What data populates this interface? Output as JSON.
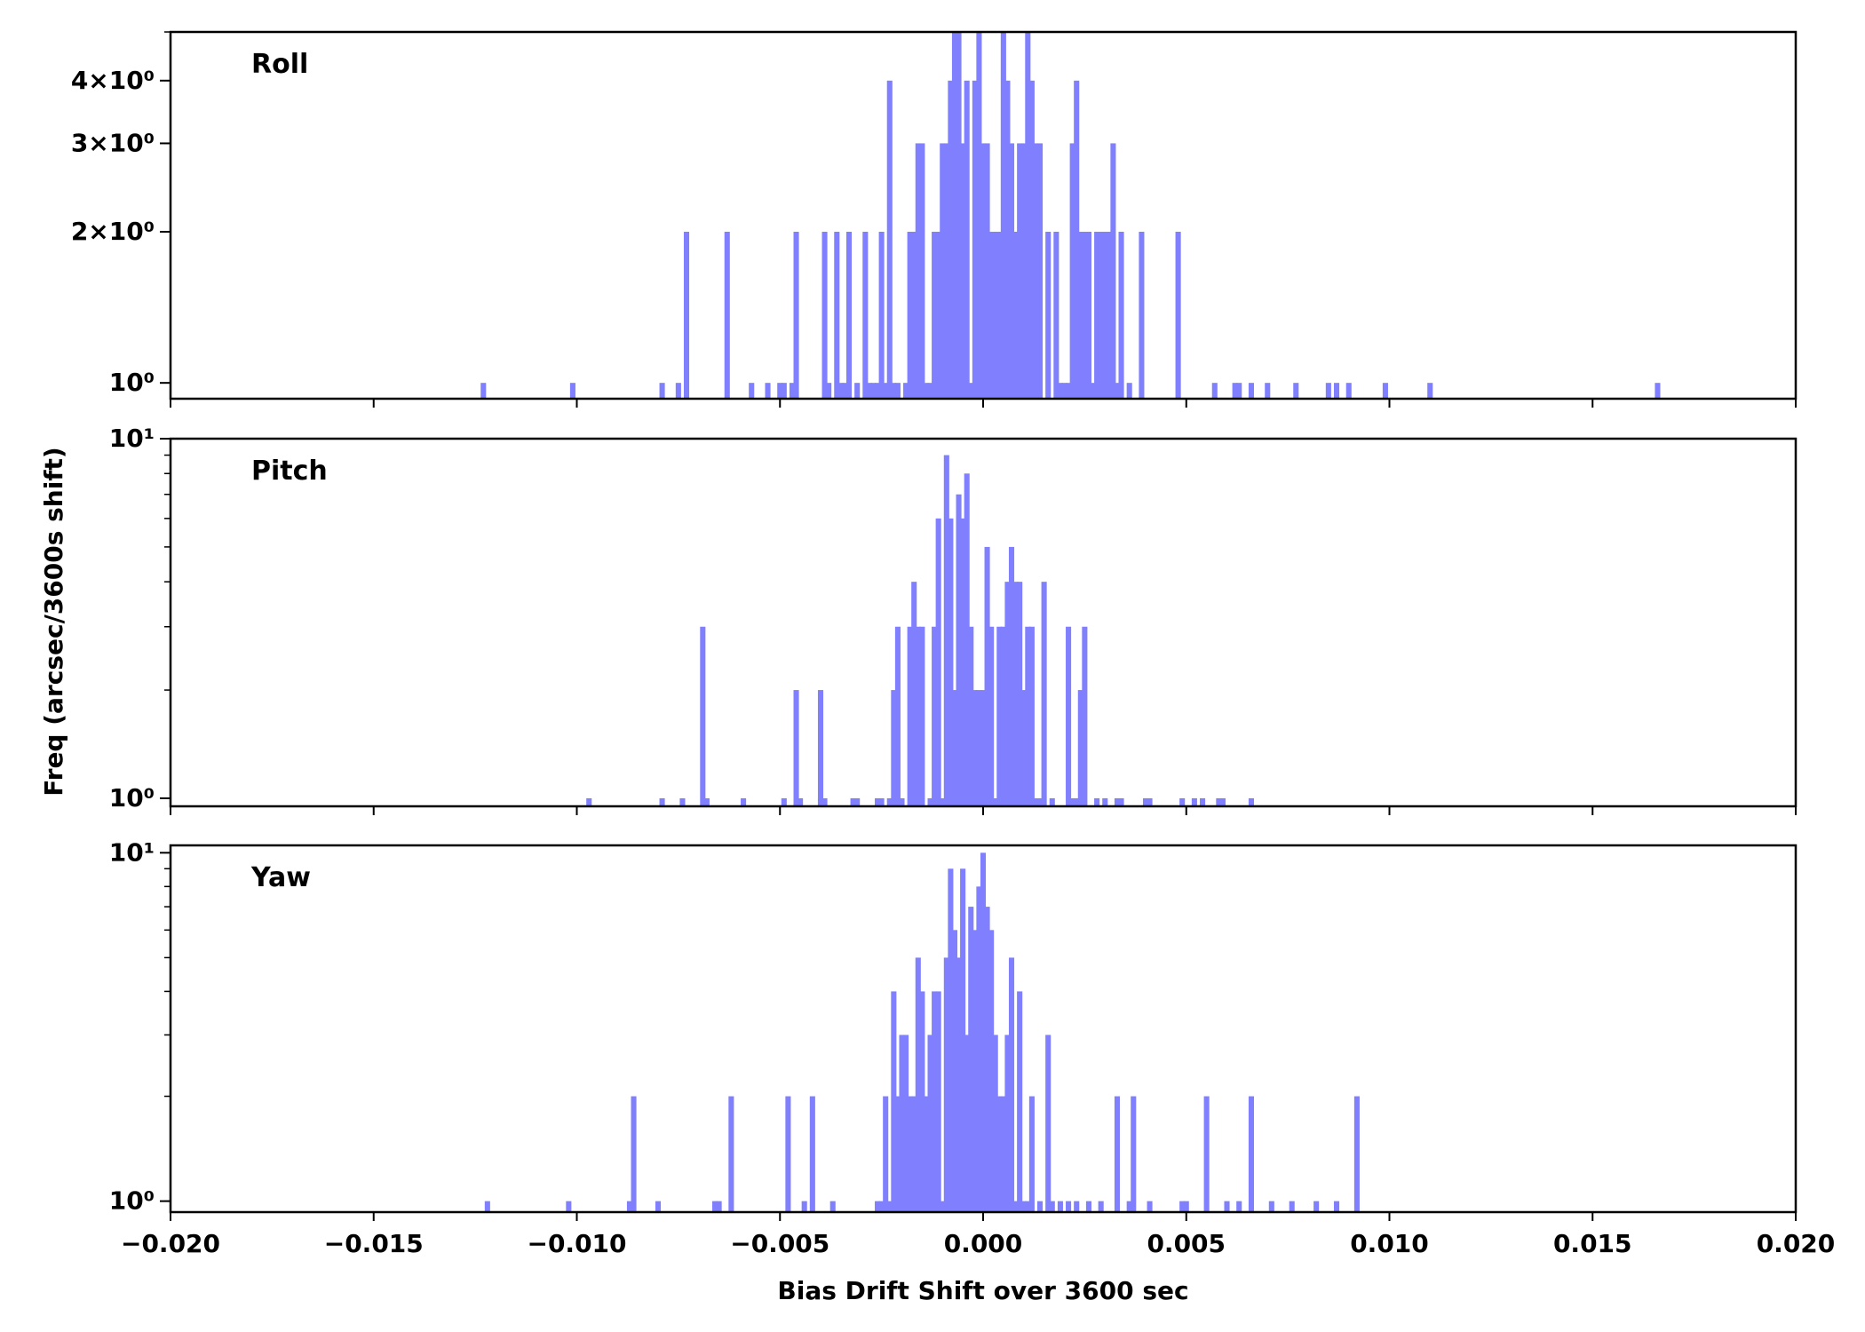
{
  "chart_data": {
    "type": "bar",
    "subtype": "histogram-stacked-panels",
    "xlabel": "Bias Drift Shift over 3600 sec",
    "ylabel": "Freq (arcsec/3600s shift)",
    "xlim": [
      -0.02,
      0.02
    ],
    "x_ticks": [
      -0.02,
      -0.015,
      -0.01,
      -0.005,
      0.0,
      0.005,
      0.01,
      0.015,
      0.02
    ],
    "x_tick_labels": [
      "−0.020",
      "−0.015",
      "−0.010",
      "−0.005",
      "0.000",
      "0.005",
      "0.010",
      "0.015",
      "0.020"
    ],
    "bar_color": "#8080ff",
    "bin_width": 0.000133,
    "yscale": "log",
    "grid": false,
    "panels": [
      {
        "name": "Roll",
        "ylim": [
          0.93,
          5.0
        ],
        "y_ticks": [
          1,
          2,
          3,
          4
        ],
        "y_tick_labels": [
          "10⁰",
          "2×10⁰",
          "3×10⁰",
          "4×10⁰"
        ],
        "bins": [
          [
            -0.0123,
            1
          ],
          [
            -0.0101,
            1
          ],
          [
            -0.0079,
            1
          ],
          [
            -0.0075,
            1
          ],
          [
            -0.0073,
            2
          ],
          [
            -0.0063,
            2
          ],
          [
            -0.0057,
            1
          ],
          [
            -0.0053,
            1
          ],
          [
            -0.005,
            1
          ],
          [
            -0.0049,
            1
          ],
          [
            -0.0047,
            1
          ],
          [
            -0.0046,
            2
          ],
          [
            -0.0039,
            2
          ],
          [
            -0.0038,
            1
          ],
          [
            -0.0036,
            2
          ],
          [
            -0.0035,
            1
          ],
          [
            -0.0034,
            1
          ],
          [
            -0.0033,
            2
          ],
          [
            -0.0031,
            1
          ],
          [
            -0.0029,
            2
          ],
          [
            -0.0028,
            1
          ],
          [
            -0.0027,
            1
          ],
          [
            -0.0026,
            1
          ],
          [
            -0.0025,
            2
          ],
          [
            -0.0024,
            1
          ],
          [
            -0.0023,
            4
          ],
          [
            -0.0022,
            1
          ],
          [
            -0.0021,
            1
          ],
          [
            -0.0019,
            1
          ],
          [
            -0.0018,
            2
          ],
          [
            -0.0017,
            2
          ],
          [
            -0.0016,
            3
          ],
          [
            -0.0015,
            3
          ],
          [
            -0.0014,
            1
          ],
          [
            -0.0013,
            1
          ],
          [
            -0.0012,
            2
          ],
          [
            -0.0011,
            2
          ],
          [
            -0.001,
            3
          ],
          [
            -0.0009,
            3
          ],
          [
            -0.0008,
            4
          ],
          [
            -0.0007,
            5
          ],
          [
            -0.0006,
            5
          ],
          [
            -0.0005,
            3
          ],
          [
            -0.0004,
            4
          ],
          [
            -0.0003,
            1
          ],
          [
            -0.0002,
            4
          ],
          [
            -0.0001,
            5
          ],
          [
            0.0,
            3
          ],
          [
            0.0001,
            3
          ],
          [
            0.0002,
            2
          ],
          [
            0.0003,
            2
          ],
          [
            0.0004,
            2
          ],
          [
            0.0005,
            5
          ],
          [
            0.0006,
            4
          ],
          [
            0.0007,
            3
          ],
          [
            0.0008,
            2
          ],
          [
            0.0009,
            3
          ],
          [
            0.001,
            3
          ],
          [
            0.0011,
            5
          ],
          [
            0.0012,
            4
          ],
          [
            0.0013,
            3
          ],
          [
            0.0014,
            3
          ],
          [
            0.0016,
            2
          ],
          [
            0.0018,
            2
          ],
          [
            0.0019,
            1
          ],
          [
            0.002,
            1
          ],
          [
            0.0021,
            1
          ],
          [
            0.0022,
            3
          ],
          [
            0.0023,
            4
          ],
          [
            0.0024,
            2
          ],
          [
            0.0025,
            2
          ],
          [
            0.0026,
            2
          ],
          [
            0.0027,
            1
          ],
          [
            0.0028,
            2
          ],
          [
            0.0029,
            2
          ],
          [
            0.003,
            2
          ],
          [
            0.0031,
            2
          ],
          [
            0.0032,
            3
          ],
          [
            0.0033,
            1
          ],
          [
            0.0034,
            2
          ],
          [
            0.0036,
            1
          ],
          [
            0.0039,
            2
          ],
          [
            0.0048,
            2
          ],
          [
            0.0057,
            1
          ],
          [
            0.0062,
            1
          ],
          [
            0.0063,
            1
          ],
          [
            0.0066,
            1
          ],
          [
            0.007,
            1
          ],
          [
            0.0077,
            1
          ],
          [
            0.0085,
            1
          ],
          [
            0.0087,
            1
          ],
          [
            0.009,
            1
          ],
          [
            0.0099,
            1
          ],
          [
            0.011,
            1
          ],
          [
            0.0166,
            1
          ]
        ]
      },
      {
        "name": "Pitch",
        "ylim": [
          0.95,
          10.0
        ],
        "y_ticks": [
          1,
          10
        ],
        "y_tick_labels": [
          "10⁰",
          "10¹"
        ],
        "bins": [
          [
            -0.0097,
            1
          ],
          [
            -0.0079,
            1
          ],
          [
            -0.0074,
            1
          ],
          [
            -0.0069,
            3
          ],
          [
            -0.0068,
            1
          ],
          [
            -0.0059,
            1
          ],
          [
            -0.0049,
            1
          ],
          [
            -0.0046,
            2
          ],
          [
            -0.0045,
            1
          ],
          [
            -0.004,
            1
          ],
          [
            -0.004,
            2
          ],
          [
            -0.0039,
            1
          ],
          [
            -0.0032,
            1
          ],
          [
            -0.0031,
            1
          ],
          [
            -0.0026,
            1
          ],
          [
            -0.0025,
            1
          ],
          [
            -0.0023,
            1
          ],
          [
            -0.0022,
            2
          ],
          [
            -0.0021,
            3
          ],
          [
            -0.002,
            1
          ],
          [
            -0.0018,
            3
          ],
          [
            -0.0017,
            4
          ],
          [
            -0.0016,
            3
          ],
          [
            -0.0015,
            3
          ],
          [
            -0.0013,
            1
          ],
          [
            -0.0012,
            3
          ],
          [
            -0.0011,
            6
          ],
          [
            -0.001,
            1
          ],
          [
            -0.0009,
            9
          ],
          [
            -0.0008,
            6
          ],
          [
            -0.0007,
            2
          ],
          [
            -0.0006,
            7
          ],
          [
            -0.0005,
            6
          ],
          [
            -0.0004,
            8
          ],
          [
            -0.0003,
            3
          ],
          [
            -0.0002,
            2
          ],
          [
            -0.0001,
            2
          ],
          [
            0.0,
            2
          ],
          [
            0.0001,
            5
          ],
          [
            0.0002,
            3
          ],
          [
            0.0003,
            1
          ],
          [
            0.0004,
            3
          ],
          [
            0.0005,
            3
          ],
          [
            0.0006,
            4
          ],
          [
            0.0007,
            5
          ],
          [
            0.0008,
            4
          ],
          [
            0.0009,
            4
          ],
          [
            0.001,
            2
          ],
          [
            0.0011,
            3
          ],
          [
            0.0012,
            3
          ],
          [
            0.0013,
            1
          ],
          [
            0.0014,
            1
          ],
          [
            0.0015,
            4
          ],
          [
            0.0017,
            1
          ],
          [
            0.0021,
            3
          ],
          [
            0.0022,
            1
          ],
          [
            0.0023,
            1
          ],
          [
            0.0024,
            2
          ],
          [
            0.0025,
            3
          ],
          [
            0.0028,
            1
          ],
          [
            0.003,
            1
          ],
          [
            0.0033,
            1
          ],
          [
            0.0034,
            1
          ],
          [
            0.004,
            1
          ],
          [
            0.0041,
            1
          ],
          [
            0.0049,
            1
          ],
          [
            0.0052,
            1
          ],
          [
            0.0054,
            1
          ],
          [
            0.0058,
            1
          ],
          [
            0.0059,
            1
          ],
          [
            0.0066,
            1
          ]
        ]
      },
      {
        "name": "Yaw",
        "ylim": [
          0.93,
          10.5
        ],
        "y_ticks": [
          1,
          10
        ],
        "y_tick_labels": [
          "10⁰",
          "10¹"
        ],
        "bins": [
          [
            -0.0122,
            1
          ],
          [
            -0.0102,
            1
          ],
          [
            -0.0087,
            1
          ],
          [
            -0.0086,
            2
          ],
          [
            -0.008,
            1
          ],
          [
            -0.0066,
            1
          ],
          [
            -0.0065,
            1
          ],
          [
            -0.0062,
            2
          ],
          [
            -0.0048,
            2
          ],
          [
            -0.0044,
            1
          ],
          [
            -0.0042,
            2
          ],
          [
            -0.0037,
            1
          ],
          [
            -0.0026,
            1
          ],
          [
            -0.0025,
            1
          ],
          [
            -0.0024,
            2
          ],
          [
            -0.0023,
            1
          ],
          [
            -0.0022,
            4
          ],
          [
            -0.0021,
            2
          ],
          [
            -0.002,
            3
          ],
          [
            -0.0019,
            3
          ],
          [
            -0.0018,
            2
          ],
          [
            -0.0017,
            2
          ],
          [
            -0.0016,
            5
          ],
          [
            -0.0015,
            4
          ],
          [
            -0.0014,
            2
          ],
          [
            -0.0013,
            3
          ],
          [
            -0.0012,
            4
          ],
          [
            -0.0011,
            4
          ],
          [
            -0.001,
            1
          ],
          [
            -0.0009,
            5
          ],
          [
            -0.0008,
            9
          ],
          [
            -0.0007,
            6
          ],
          [
            -0.0006,
            5
          ],
          [
            -0.0005,
            9
          ],
          [
            -0.0004,
            3
          ],
          [
            -0.0003,
            7
          ],
          [
            -0.0002,
            6
          ],
          [
            -0.0001,
            8
          ],
          [
            0.0,
            10
          ],
          [
            0.0001,
            7
          ],
          [
            0.0002,
            6
          ],
          [
            0.0003,
            3
          ],
          [
            0.0004,
            2
          ],
          [
            0.0005,
            2
          ],
          [
            0.0006,
            3
          ],
          [
            0.0007,
            5
          ],
          [
            0.0008,
            1
          ],
          [
            0.0009,
            4
          ],
          [
            0.001,
            1
          ],
          [
            0.0011,
            1
          ],
          [
            0.0012,
            2
          ],
          [
            0.0014,
            1
          ],
          [
            0.0016,
            3
          ],
          [
            0.0017,
            1
          ],
          [
            0.0019,
            1
          ],
          [
            0.0021,
            1
          ],
          [
            0.0023,
            1
          ],
          [
            0.0026,
            1
          ],
          [
            0.0029,
            1
          ],
          [
            0.0033,
            2
          ],
          [
            0.0036,
            1
          ],
          [
            0.0037,
            2
          ],
          [
            0.0041,
            1
          ],
          [
            0.0049,
            1
          ],
          [
            0.005,
            1
          ],
          [
            0.0055,
            2
          ],
          [
            0.006,
            1
          ],
          [
            0.0063,
            1
          ],
          [
            0.0066,
            2
          ],
          [
            0.0071,
            1
          ],
          [
            0.0076,
            1
          ],
          [
            0.0082,
            1
          ],
          [
            0.0087,
            1
          ],
          [
            0.0092,
            2
          ]
        ]
      }
    ]
  }
}
